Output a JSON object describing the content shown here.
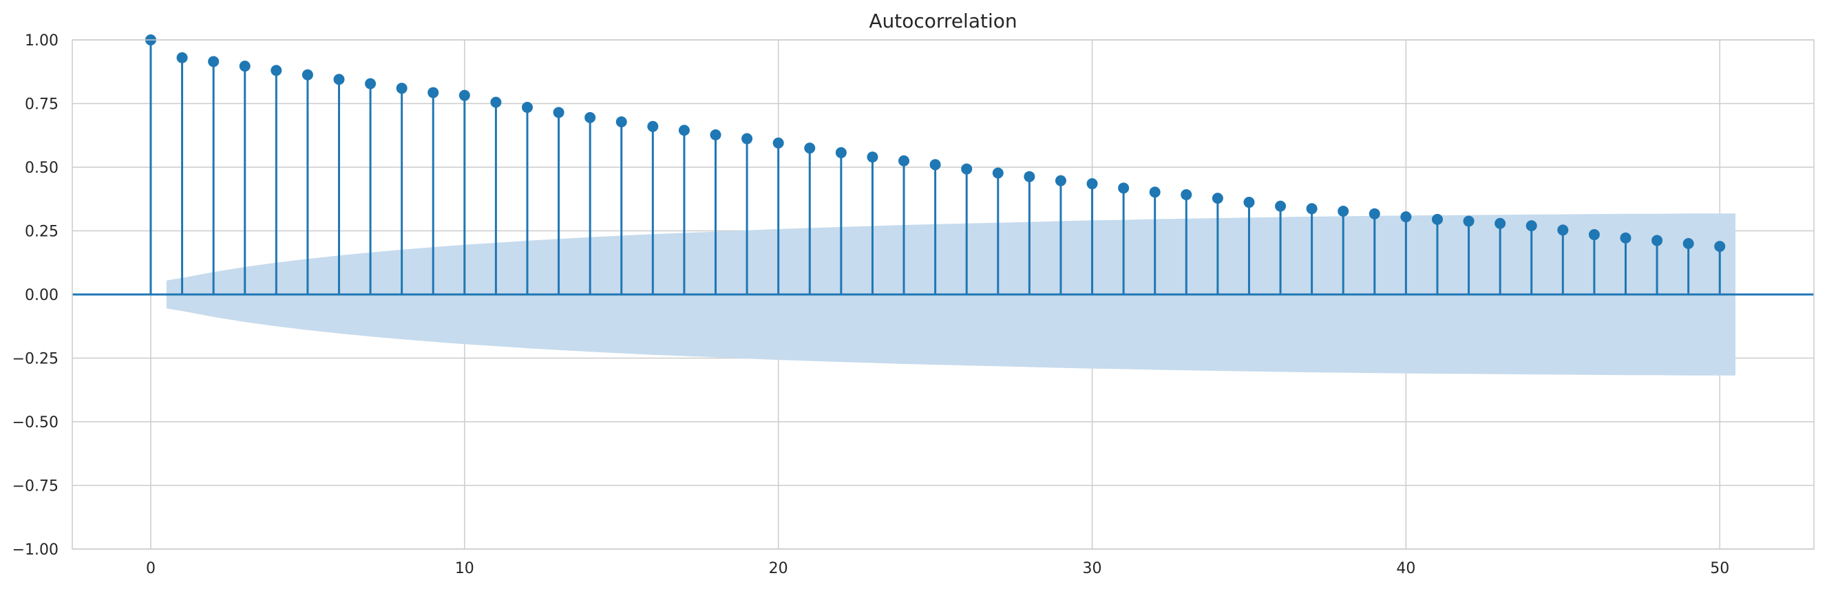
{
  "chart_data": {
    "type": "stem",
    "title": "Autocorrelation",
    "xlabel": "",
    "ylabel": "",
    "xlim": [
      -2.5,
      53
    ],
    "ylim": [
      -1.0,
      1.0
    ],
    "xticks": [
      0,
      10,
      20,
      30,
      40,
      50
    ],
    "xtick_labels": [
      "0",
      "10",
      "20",
      "30",
      "40",
      "50"
    ],
    "yticks": [
      1.0,
      0.75,
      0.5,
      0.25,
      0.0,
      -0.25,
      -0.5,
      -0.75,
      -1.0
    ],
    "ytick_labels": [
      "1.00",
      "0.75",
      "0.50",
      "0.25",
      "0.00",
      "−0.25",
      "−0.50",
      "−0.75",
      "−1.00"
    ],
    "grid": true,
    "lags": [
      0,
      1,
      2,
      3,
      4,
      5,
      6,
      7,
      8,
      9,
      10,
      11,
      12,
      13,
      14,
      15,
      16,
      17,
      18,
      19,
      20,
      21,
      22,
      23,
      24,
      25,
      26,
      27,
      28,
      29,
      30,
      31,
      32,
      33,
      34,
      35,
      36,
      37,
      38,
      39,
      40,
      41,
      42,
      43,
      44,
      45,
      46,
      47,
      48,
      49,
      50
    ],
    "values": [
      1.0,
      0.93,
      0.915,
      0.897,
      0.88,
      0.863,
      0.845,
      0.828,
      0.81,
      0.793,
      0.782,
      0.755,
      0.735,
      0.715,
      0.695,
      0.678,
      0.66,
      0.645,
      0.627,
      0.612,
      0.595,
      0.575,
      0.557,
      0.54,
      0.525,
      0.51,
      0.493,
      0.477,
      0.463,
      0.447,
      0.435,
      0.418,
      0.402,
      0.392,
      0.378,
      0.362,
      0.347,
      0.337,
      0.327,
      0.317,
      0.305,
      0.295,
      0.288,
      0.279,
      0.27,
      0.253,
      0.235,
      0.222,
      0.212,
      0.2,
      0.189
    ],
    "confidence_band": {
      "x": [
        0.5,
        1,
        2,
        3,
        4,
        5,
        6,
        7,
        8,
        9,
        10,
        11,
        12,
        13,
        14,
        15,
        16,
        17,
        18,
        19,
        20,
        21,
        22,
        23,
        24,
        25,
        26,
        27,
        28,
        29,
        30,
        31,
        32,
        33,
        34,
        35,
        36,
        37,
        38,
        39,
        40,
        41,
        42,
        43,
        44,
        45,
        46,
        47,
        48,
        49,
        50,
        50.5
      ],
      "upper": [
        0.055,
        0.065,
        0.088,
        0.108,
        0.125,
        0.14,
        0.153,
        0.165,
        0.176,
        0.186,
        0.195,
        0.203,
        0.211,
        0.218,
        0.225,
        0.231,
        0.237,
        0.242,
        0.247,
        0.252,
        0.257,
        0.261,
        0.265,
        0.269,
        0.273,
        0.276,
        0.279,
        0.282,
        0.285,
        0.288,
        0.291,
        0.293,
        0.296,
        0.298,
        0.3,
        0.302,
        0.304,
        0.306,
        0.307,
        0.309,
        0.31,
        0.311,
        0.312,
        0.313,
        0.314,
        0.315,
        0.316,
        0.317,
        0.317,
        0.318,
        0.318,
        0.318
      ]
    },
    "colors": {
      "stem": "#1f77b4",
      "band": "#c6dbed",
      "grid": "#cccccc",
      "axis_line": "#1f77b4",
      "frame": "#cccccc"
    }
  }
}
